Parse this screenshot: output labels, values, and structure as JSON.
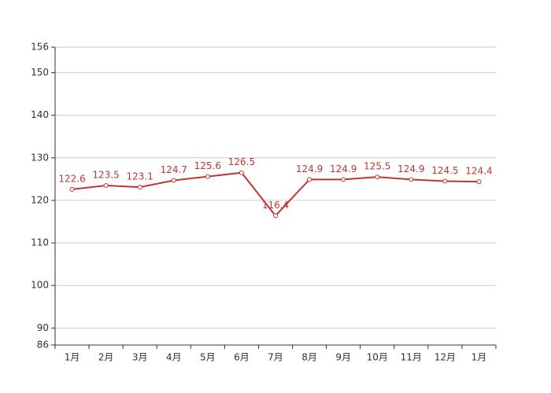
{
  "chart_data": {
    "type": "line",
    "categories": [
      "1月",
      "2月",
      "3月",
      "4月",
      "5月",
      "6月",
      "7月",
      "8月",
      "9月",
      "10月",
      "11月",
      "12月",
      "1月"
    ],
    "series": [
      {
        "color": "#c23531",
        "values": [
          122.6,
          123.5,
          123.1,
          124.7,
          125.6,
          126.5,
          116.4,
          124.9,
          124.9,
          125.5,
          124.9,
          124.5,
          124.4
        ]
      }
    ],
    "ylim": [
      86,
      156
    ],
    "yticks": [
      86,
      90,
      100,
      110,
      120,
      130,
      140,
      150,
      156
    ],
    "grid": true
  }
}
